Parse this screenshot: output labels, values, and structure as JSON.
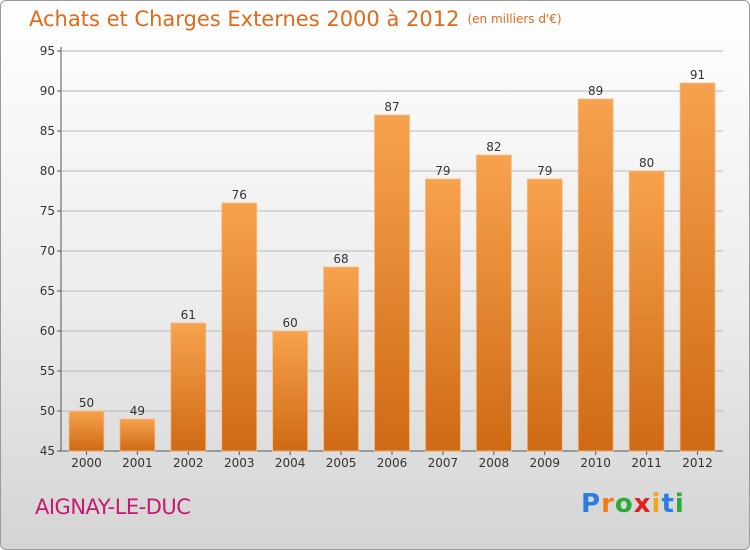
{
  "title": "Achats et Charges Externes 2000 à 2012",
  "unit_label": "(en milliers d'€)",
  "commune": "AIGNAY-LE-DUC",
  "logo": {
    "letters": [
      "P",
      "r",
      "o",
      "x",
      "i",
      "t",
      "i"
    ],
    "colors": [
      "#2b7de0",
      "#f07d1a",
      "#2eaa3a",
      "#e0201f",
      "#f0a51a",
      "#2b7de0",
      "#2eaa3a"
    ]
  },
  "colors": {
    "title": "#e06a1a",
    "commune": "#c8186f",
    "bar_top": "#f7a24e",
    "bar_bottom": "#cf6a14"
  },
  "chart_data": {
    "type": "bar",
    "categories": [
      "2000",
      "2001",
      "2002",
      "2003",
      "2004",
      "2005",
      "2006",
      "2007",
      "2008",
      "2009",
      "2010",
      "2011",
      "2012"
    ],
    "values": [
      50,
      49,
      61,
      76,
      60,
      68,
      87,
      79,
      82,
      79,
      89,
      80,
      91
    ],
    "ylim": [
      45,
      95
    ],
    "yticks": [
      45,
      50,
      55,
      60,
      65,
      70,
      75,
      80,
      85,
      90,
      95
    ],
    "grid": true,
    "legend": "none"
  }
}
